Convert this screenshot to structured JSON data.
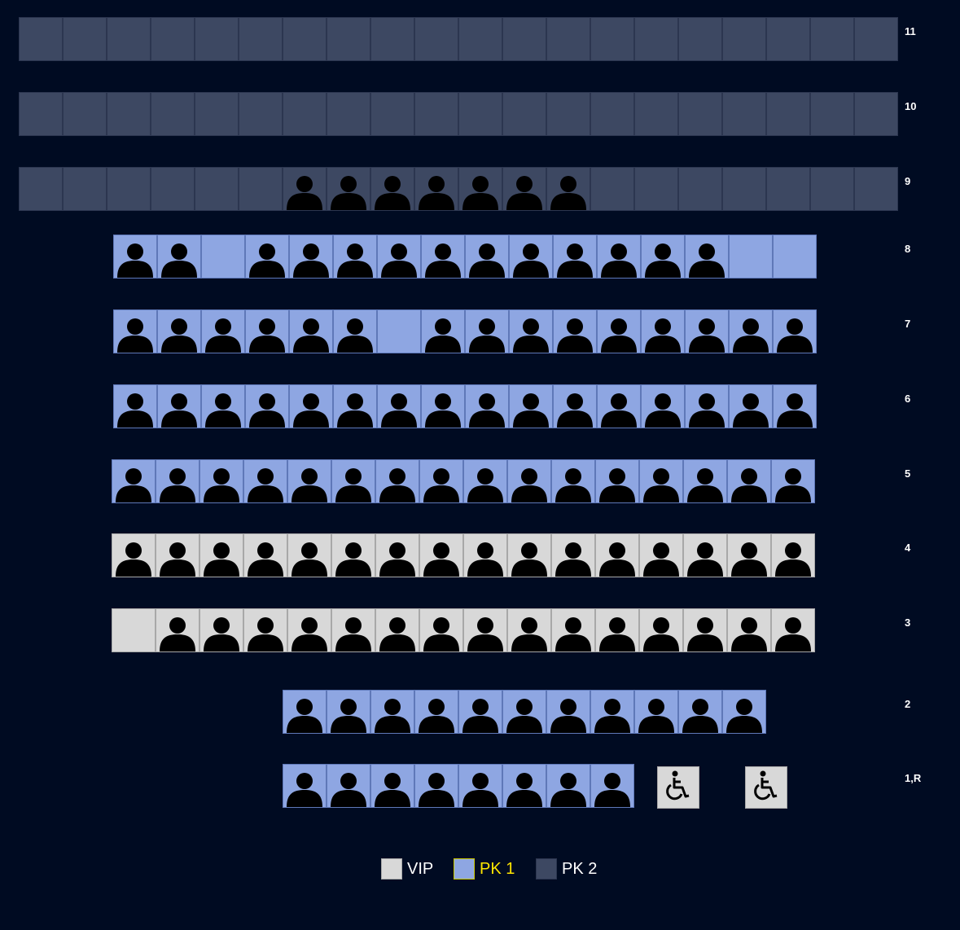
{
  "colors": {
    "background": "#000b22",
    "vip": "#d8d8d8",
    "pk1": "#8ea6e2",
    "pk2": "#3d4862",
    "occupant": "#000000",
    "active_legend_text": "#ffe600"
  },
  "rows": [
    {
      "label": "11",
      "category": "pk2",
      "seats": "00000000000000000000"
    },
    {
      "label": "10",
      "category": "pk2",
      "seats": "00000000000000000000"
    },
    {
      "label": "9",
      "category": "pk2",
      "seats": "00000011111110000000"
    },
    {
      "label": "8",
      "category": "pk1",
      "seats": "1101111111111100"
    },
    {
      "label": "7",
      "category": "pk1",
      "seats": "1111110111111111"
    },
    {
      "label": "6",
      "category": "pk1",
      "seats": "1111111111111111"
    },
    {
      "label": "5",
      "category": "pk1",
      "seats": "1111111111111111"
    },
    {
      "label": "4",
      "category": "vip",
      "seats": "1111111111111111"
    },
    {
      "label": "3",
      "category": "vip",
      "seats": "0111111111111111"
    },
    {
      "label": "2",
      "category": "pk1",
      "seats": "11111111111"
    },
    {
      "label": "1,R",
      "category": "pk1",
      "seats": "11111111",
      "wheelchair_spots": 2
    }
  ],
  "seat_icon": "person-icon",
  "wheelchair_icon": "wheelchair-icon",
  "legend": [
    {
      "key": "vip",
      "label": "VIP",
      "active": false
    },
    {
      "key": "pk1",
      "label": "PK 1",
      "active": true
    },
    {
      "key": "pk2",
      "label": "PK 2",
      "active": false
    }
  ]
}
